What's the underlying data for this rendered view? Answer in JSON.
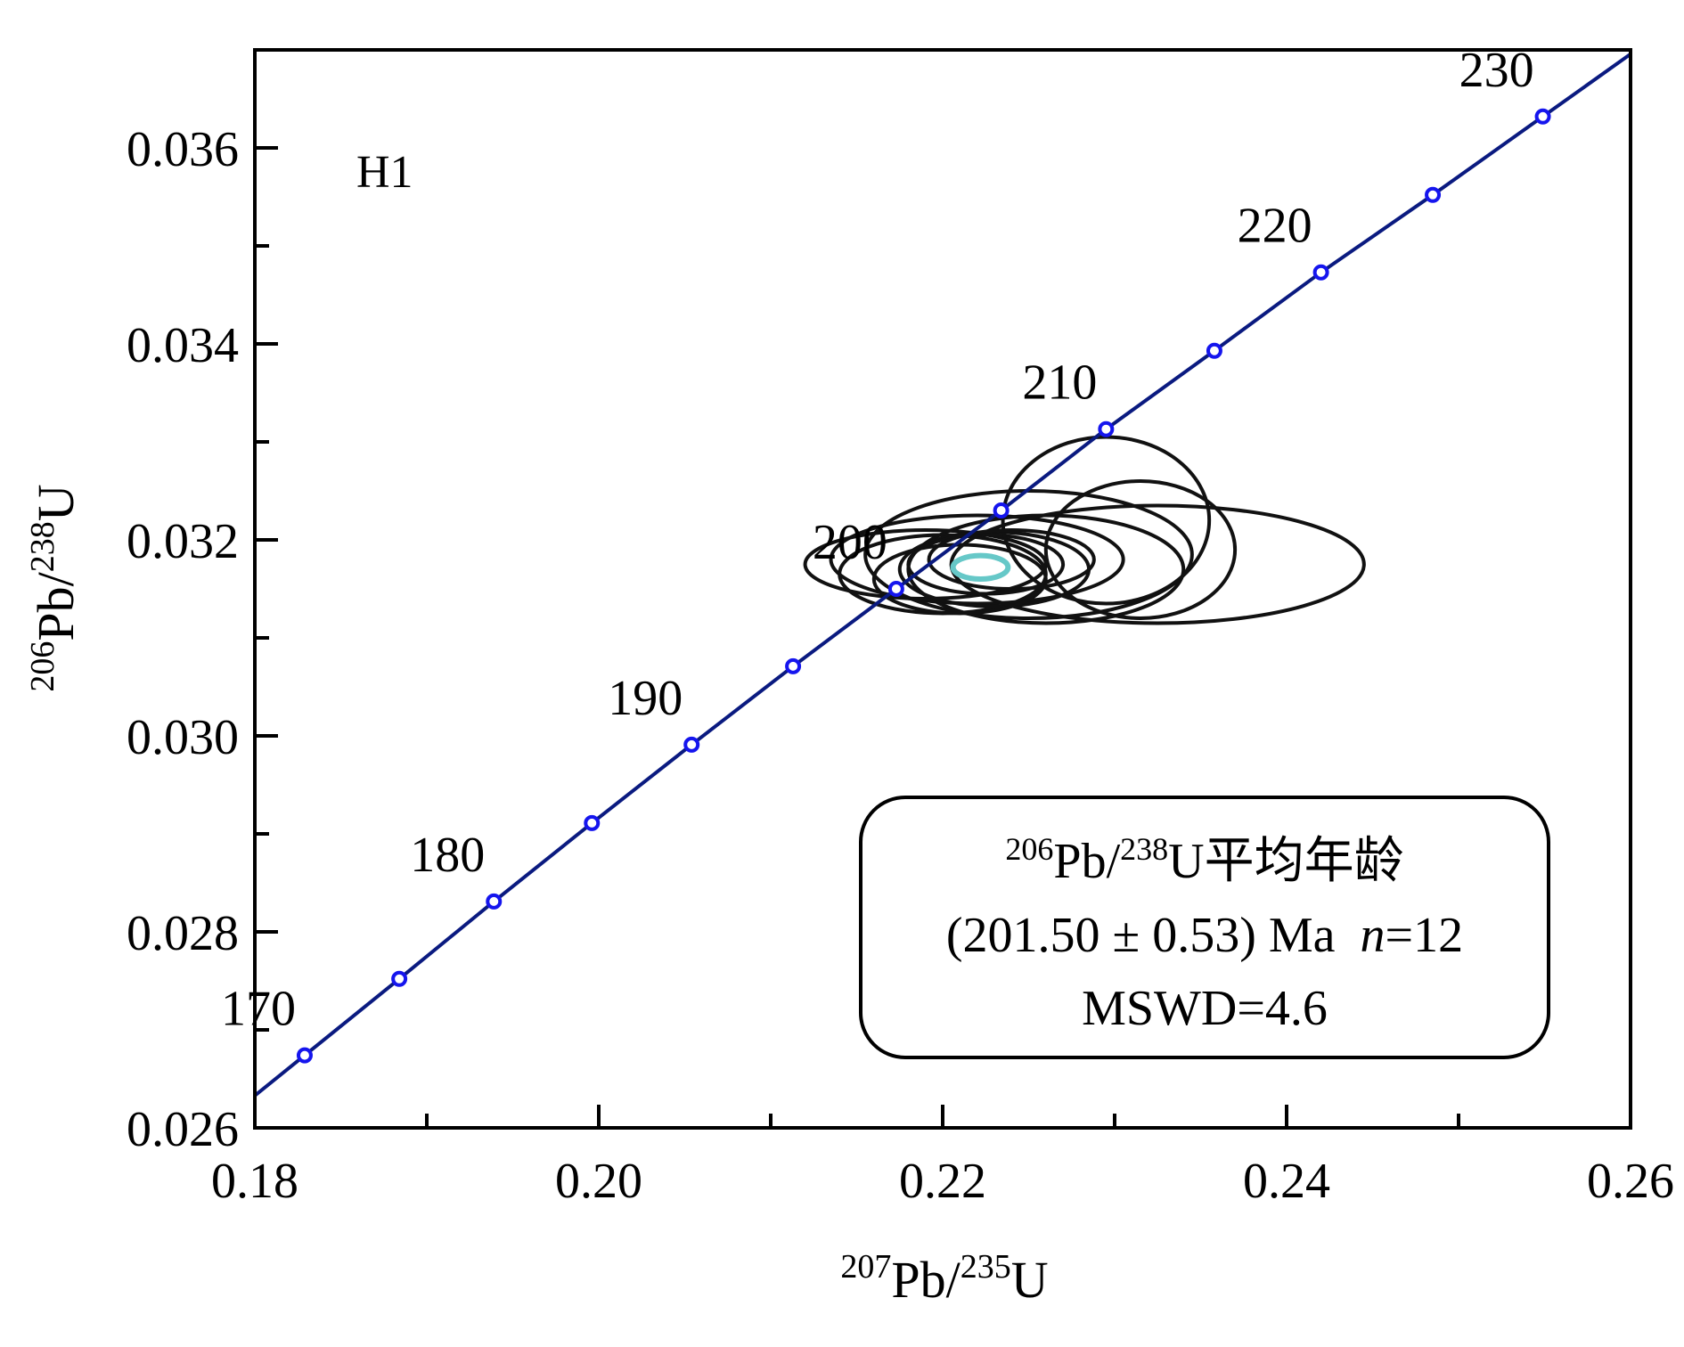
{
  "chart_data": {
    "type": "scatter",
    "sample_label": "H1",
    "xlabel": {
      "mass_x": "207",
      "element_x": "Pb/",
      "mass_u": "235",
      "element_u": "U"
    },
    "ylabel": {
      "mass_x": "206",
      "element_x": "Pb/",
      "mass_u": "238",
      "element_u": "U"
    },
    "xlim": [
      0.18,
      0.26
    ],
    "ylim": [
      0.026,
      0.037
    ],
    "x_ticks": [
      0.18,
      0.2,
      0.22,
      0.24,
      0.26
    ],
    "x_tick_labels": [
      "0.18",
      "0.20",
      "0.22",
      "0.24",
      "0.26"
    ],
    "x_minor_step": 0.01,
    "y_ticks": [
      0.026,
      0.028,
      0.03,
      0.032,
      0.034,
      0.036
    ],
    "y_tick_labels": [
      "0.026",
      "0.028",
      "0.030",
      "0.032",
      "0.034",
      "0.036"
    ],
    "y_minor_step": 0.001,
    "concordia": {
      "color": "#0a1a80",
      "marker_color": "#1515ee",
      "markers": [
        {
          "age": 170,
          "x": 0.1829,
          "y": 0.02674,
          "label": "170"
        },
        {
          "age": 175,
          "x": 0.1884,
          "y": 0.02752,
          "label": ""
        },
        {
          "age": 180,
          "x": 0.1939,
          "y": 0.02831,
          "label": "180"
        },
        {
          "age": 185,
          "x": 0.1996,
          "y": 0.02911,
          "label": ""
        },
        {
          "age": 190,
          "x": 0.2054,
          "y": 0.02991,
          "label": "190"
        },
        {
          "age": 195,
          "x": 0.2113,
          "y": 0.03071,
          "label": ""
        },
        {
          "age": 200,
          "x": 0.2173,
          "y": 0.0315,
          "label": "200"
        },
        {
          "age": 205,
          "x": 0.2234,
          "y": 0.0323,
          "label": ""
        },
        {
          "age": 210,
          "x": 0.2295,
          "y": 0.03313,
          "label": "210"
        },
        {
          "age": 215,
          "x": 0.2358,
          "y": 0.03393,
          "label": ""
        },
        {
          "age": 220,
          "x": 0.242,
          "y": 0.03473,
          "label": "220"
        },
        {
          "age": 225,
          "x": 0.2485,
          "y": 0.03552,
          "label": ""
        },
        {
          "age": 230,
          "x": 0.2549,
          "y": 0.03632,
          "label": "230"
        }
      ]
    },
    "ellipses": [
      {
        "cx": 0.225,
        "cy": 0.03185,
        "rx": 0.0095,
        "ry": 0.00065,
        "angle": 0
      },
      {
        "cx": 0.222,
        "cy": 0.0318,
        "rx": 0.0085,
        "ry": 0.00045,
        "angle": 0
      },
      {
        "cx": 0.226,
        "cy": 0.0317,
        "rx": 0.008,
        "ry": 0.00055,
        "angle": 0
      },
      {
        "cx": 0.219,
        "cy": 0.03175,
        "rx": 0.007,
        "ry": 0.00035,
        "angle": 0
      },
      {
        "cx": 0.22,
        "cy": 0.03165,
        "rx": 0.006,
        "ry": 0.0004,
        "angle": 0
      },
      {
        "cx": 0.223,
        "cy": 0.0317,
        "rx": 0.0055,
        "ry": 0.00038,
        "angle": 0
      },
      {
        "cx": 0.221,
        "cy": 0.0316,
        "rx": 0.005,
        "ry": 0.00035,
        "angle": 0
      },
      {
        "cx": 0.2225,
        "cy": 0.03175,
        "rx": 0.0045,
        "ry": 0.0003,
        "angle": 0
      },
      {
        "cx": 0.2295,
        "cy": 0.0322,
        "rx": 0.006,
        "ry": 0.00085,
        "angle": 0
      },
      {
        "cx": 0.2315,
        "cy": 0.0319,
        "rx": 0.0055,
        "ry": 0.0007,
        "angle": 0
      },
      {
        "cx": 0.2325,
        "cy": 0.03175,
        "rx": 0.012,
        "ry": 0.0006,
        "angle": 0
      },
      {
        "cx": 0.224,
        "cy": 0.0318,
        "rx": 0.0048,
        "ry": 0.0003,
        "angle": 0
      }
    ],
    "mean_ellipse": {
      "cx": 0.2222,
      "cy": 0.03172,
      "rx": 0.0016,
      "ry": 0.00012,
      "color": "#66c8c8"
    },
    "annotation": {
      "line1": {
        "mass_x": "206",
        "element_x": "Pb/",
        "mass_u": "238",
        "element_u": "U平均年龄"
      },
      "line2_main": "(201.50 ± 0.53) Ma  ",
      "line2_n": "n",
      "line2_count": "=12",
      "line3": "MSWD=4.6"
    }
  }
}
